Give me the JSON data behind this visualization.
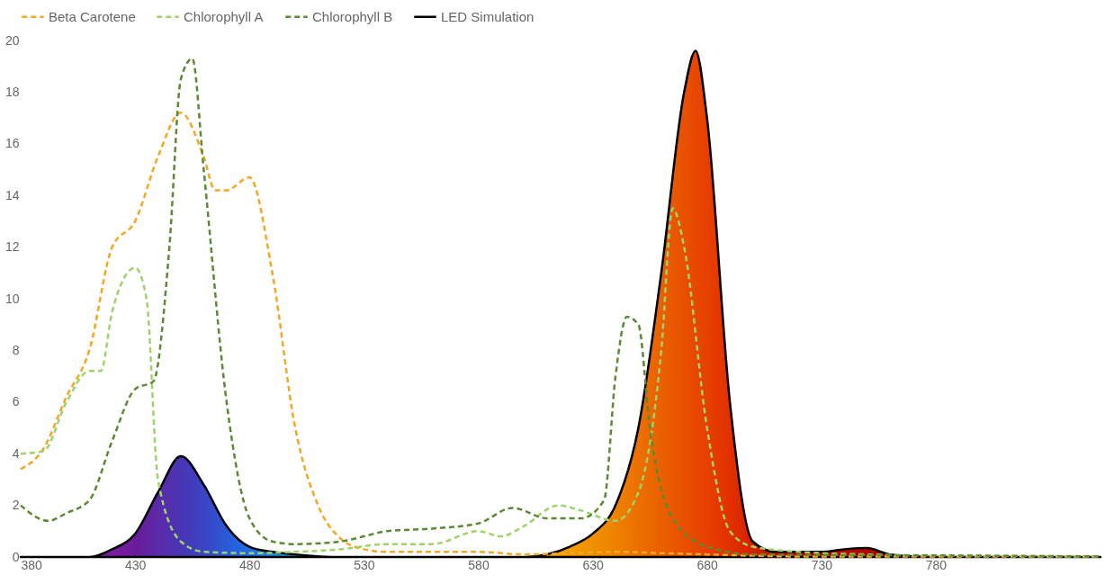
{
  "chart_data": {
    "type": "line",
    "xlim": [
      380,
      852
    ],
    "xticks": [
      380,
      430,
      480,
      530,
      580,
      630,
      680,
      730,
      780
    ],
    "ylim": [
      0,
      20
    ],
    "yticks": [
      0,
      2,
      4,
      6,
      8,
      10,
      12,
      14,
      16,
      18,
      20
    ],
    "grid": false,
    "legend": "top",
    "marker": "none",
    "series": [
      {
        "name": "Beta Carotene",
        "line_style": "dashed",
        "color": "#f5a623",
        "x": [
          380,
          390,
          400,
          410,
          420,
          430,
          440,
          450,
          460,
          465,
          470,
          480,
          490,
          500,
          510,
          520,
          530,
          540,
          560,
          580,
          600,
          620,
          640,
          660,
          680,
          700,
          720,
          852
        ],
        "values": [
          3.4,
          4.2,
          6.2,
          8.0,
          12.0,
          13.0,
          15.5,
          17.2,
          15.5,
          14.2,
          14.2,
          14.7,
          11.0,
          5.0,
          2.0,
          0.7,
          0.3,
          0.2,
          0.2,
          0.2,
          0.1,
          0.15,
          0.2,
          0.15,
          0.1,
          0.05,
          0.02,
          0.02
        ]
      },
      {
        "name": "Chlorophyll A",
        "line_style": "dashed",
        "color": "#9ed36a",
        "x": [
          380,
          390,
          400,
          410,
          415,
          420,
          430,
          435,
          440,
          450,
          460,
          480,
          500,
          520,
          540,
          560,
          580,
          590,
          600,
          615,
          625,
          640,
          650,
          660,
          665,
          670,
          680,
          690,
          700,
          720,
          750,
          800,
          852
        ],
        "values": [
          4.0,
          4.1,
          6.0,
          7.2,
          7.2,
          9.5,
          11.2,
          10.0,
          3.0,
          0.6,
          0.2,
          0.15,
          0.2,
          0.3,
          0.5,
          0.5,
          1.0,
          0.8,
          1.2,
          2.0,
          1.8,
          1.4,
          2.5,
          8.0,
          13.5,
          12.0,
          5.0,
          1.0,
          0.4,
          0.2,
          0.1,
          0.05,
          0.02
        ]
      },
      {
        "name": "Chlorophyll B",
        "line_style": "dashed",
        "color": "#5a8a32",
        "x": [
          380,
          392,
          400,
          410,
          420,
          430,
          438,
          445,
          450,
          455,
          460,
          470,
          480,
          490,
          500,
          520,
          530,
          540,
          560,
          580,
          595,
          610,
          625,
          635,
          640,
          645,
          650,
          655,
          665,
          680,
          700,
          800,
          852
        ],
        "values": [
          2.0,
          1.4,
          1.7,
          2.2,
          4.5,
          6.5,
          6.8,
          12.0,
          18.5,
          19.3,
          15.0,
          6.0,
          1.5,
          0.6,
          0.5,
          0.6,
          0.8,
          1.0,
          1.1,
          1.3,
          1.9,
          1.5,
          1.5,
          2.2,
          7.0,
          9.3,
          9.0,
          5.0,
          1.5,
          0.4,
          0.1,
          0.05,
          0.02
        ]
      },
      {
        "name": "LED Simulation",
        "type": "area",
        "line_style": "solid",
        "color": "#000000",
        "colors": [
          "#6a1b9a",
          "#6a1b9a",
          "#7b1fa2",
          "#6a1b9a",
          "#5a2aa8",
          "#4a35b5",
          "#3b43c4",
          "#2a5ad6",
          "#1e6ee6",
          "#1e88e5",
          "#00acc1",
          "#4caf50",
          "#f5b000",
          "#f5a800",
          "#f39c00",
          "#f09000",
          "#ee8200",
          "#ec7000",
          "#ea6000",
          "#e85000",
          "#e84800",
          "#e64000",
          "#e23000",
          "#d82000",
          "#d01000",
          "#c80000",
          "#c00000",
          "#b80000",
          "#b00000",
          "#a00000",
          "#a00000"
        ],
        "x": [
          380,
          410,
          420,
          430,
          440,
          450,
          460,
          470,
          480,
          490,
          500,
          520,
          600,
          610,
          620,
          630,
          640,
          650,
          660,
          670,
          675,
          680,
          690,
          700,
          710,
          730,
          740,
          750,
          760,
          780,
          852
        ],
        "values": [
          0,
          0,
          0.3,
          0.9,
          2.5,
          3.9,
          2.8,
          1.2,
          0.4,
          0.2,
          0.1,
          0,
          0,
          0.1,
          0.4,
          0.9,
          2.0,
          5.0,
          11.0,
          18.0,
          19.6,
          17.0,
          6.0,
          0.6,
          0.2,
          0.2,
          0.3,
          0.35,
          0.1,
          0,
          0
        ]
      }
    ]
  }
}
